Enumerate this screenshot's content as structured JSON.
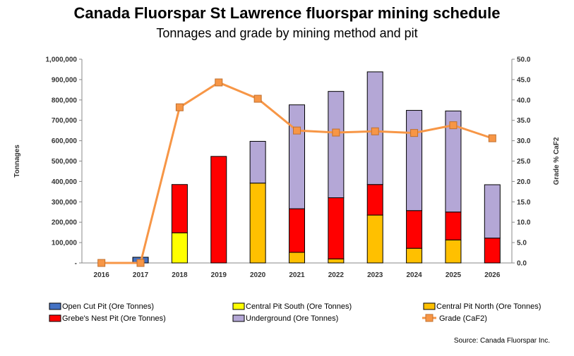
{
  "title": "Canada Fluorspar St Lawrence fluorspar mining schedule",
  "subtitle": "Tonnages and grade by mining method and pit",
  "source": "Source: Canada Fluorspar Inc.",
  "colors": {
    "open_cut": "#4472C4",
    "central_south": "#FFFF00",
    "central_north": "#FFC000",
    "grebes_nest": "#FF0000",
    "underground": "#B4A7D6",
    "grade": "#F79646"
  },
  "chart_data": {
    "type": "bar",
    "stacked": true,
    "categories": [
      "2016",
      "2017",
      "2018",
      "2019",
      "2020",
      "2021",
      "2022",
      "2023",
      "2024",
      "2025",
      "2026"
    ],
    "ylabel": "Tonnages",
    "y2label": "Grade % CaF2",
    "ylim": [
      0,
      1000000
    ],
    "y2lim": [
      0,
      50
    ],
    "yticks": [
      "-",
      "100,000",
      "200,000",
      "300,000",
      "400,000",
      "500,000",
      "600,000",
      "700,000",
      "800,000",
      "900,000",
      "1,000,000"
    ],
    "y2ticks": [
      "0.0",
      "5.0",
      "10.0",
      "15.0",
      "20.0",
      "25.0",
      "30.0",
      "35.0",
      "40.0",
      "45.0",
      "50.0"
    ],
    "series": [
      {
        "name": "Open Cut Pit (Ore Tonnes)",
        "color_key": "open_cut",
        "values": [
          0,
          28000,
          0,
          0,
          0,
          0,
          0,
          0,
          0,
          0,
          0
        ]
      },
      {
        "name": "Central Pit South (Ore Tonnes)",
        "color_key": "central_south",
        "values": [
          0,
          0,
          148000,
          0,
          0,
          0,
          0,
          0,
          0,
          0,
          0
        ]
      },
      {
        "name": "Central Pit North (Ore Tonnes)",
        "color_key": "central_north",
        "values": [
          0,
          0,
          0,
          0,
          392000,
          52000,
          20000,
          235000,
          72000,
          113000,
          0
        ]
      },
      {
        "name": "Grebe's Nest Pit (Ore Tonnes)",
        "color_key": "grebes_nest",
        "values": [
          0,
          0,
          237000,
          523000,
          0,
          214000,
          300000,
          150000,
          185000,
          137000,
          122000
        ]
      },
      {
        "name": "Underground (Ore Tonnes)",
        "color_key": "underground",
        "values": [
          0,
          0,
          0,
          0,
          205000,
          510000,
          522000,
          553000,
          492000,
          496000,
          262000
        ]
      }
    ],
    "line_series": {
      "name": "Grade (CaF2)",
      "color_key": "grade",
      "axis": "right",
      "values": [
        0.0,
        0.0,
        38.2,
        44.3,
        40.3,
        32.5,
        32.0,
        32.3,
        31.9,
        33.8,
        30.6
      ]
    },
    "legend_position": "bottom"
  }
}
